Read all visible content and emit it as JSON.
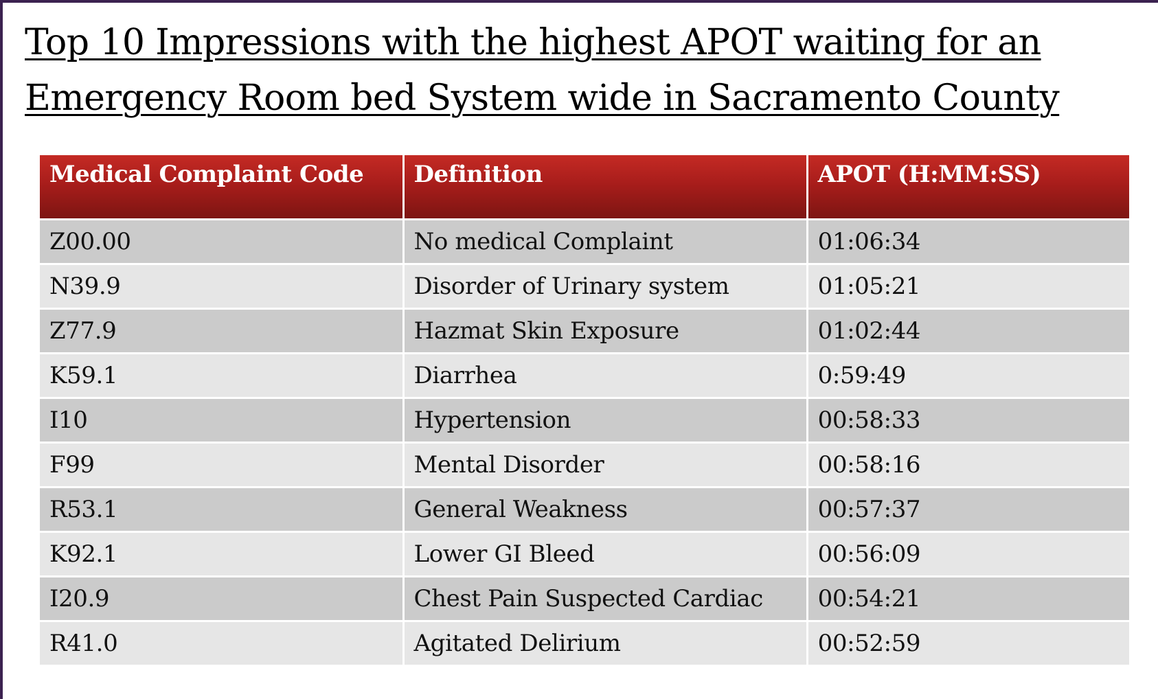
{
  "title_line1": "Top 10 Impressions with the highest APOT waiting for an",
  "title_line2": "Emergency Room bed System wide in Sacramento County",
  "table": {
    "headers": [
      "Medical Complaint Code",
      "Definition",
      "APOT  (H:MM:SS)"
    ],
    "rows": [
      [
        "Z00.00",
        "No medical Complaint",
        "01:06:34"
      ],
      [
        "N39.9",
        "Disorder of Urinary system",
        "01:05:21"
      ],
      [
        "Z77.9",
        "Hazmat Skin Exposure",
        "01:02:44"
      ],
      [
        "K59.1",
        "Diarrhea",
        "0:59:49"
      ],
      [
        "I10",
        "Hypertension",
        "00:58:33"
      ],
      [
        "F99",
        "Mental Disorder",
        "00:58:16"
      ],
      [
        "R53.1",
        "General Weakness",
        "00:57:37"
      ],
      [
        "K92.1",
        "Lower GI Bleed",
        "00:56:09"
      ],
      [
        "I20.9",
        "Chest Pain Suspected Cardiac",
        "00:54:21"
      ],
      [
        "R41.0",
        "Agitated Delirium",
        "00:52:59"
      ]
    ]
  },
  "colors": {
    "header_red": "#a81d1b",
    "row_dark": "#cbcbcb",
    "row_light": "#e6e6e6",
    "border_frame": "#3b2250"
  }
}
